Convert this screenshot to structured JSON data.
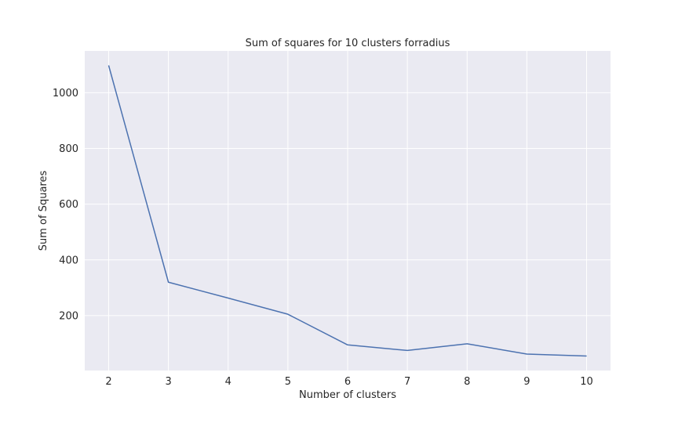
{
  "chart_data": {
    "type": "line",
    "title": "Sum of squares for 10 clusters forradius",
    "xlabel": "Number of clusters",
    "ylabel": "Sum of Squares",
    "x": [
      2,
      3,
      4,
      5,
      6,
      7,
      8,
      9,
      10
    ],
    "series": [
      {
        "values": [
          1098,
          320,
          263,
          205,
          95,
          75,
          99,
          62,
          55
        ]
      }
    ],
    "xticks": [
      "2",
      "3",
      "4",
      "5",
      "6",
      "7",
      "8",
      "9",
      "10"
    ],
    "yticks": [
      "200",
      "400",
      "600",
      "800",
      "1000"
    ],
    "xlim": [
      1.6,
      10.4
    ],
    "ylim": [
      3,
      1150
    ],
    "grid": true,
    "colors": {
      "background": "#eaeaf2",
      "grid": "#ffffff",
      "line": "#4c72b0"
    }
  }
}
